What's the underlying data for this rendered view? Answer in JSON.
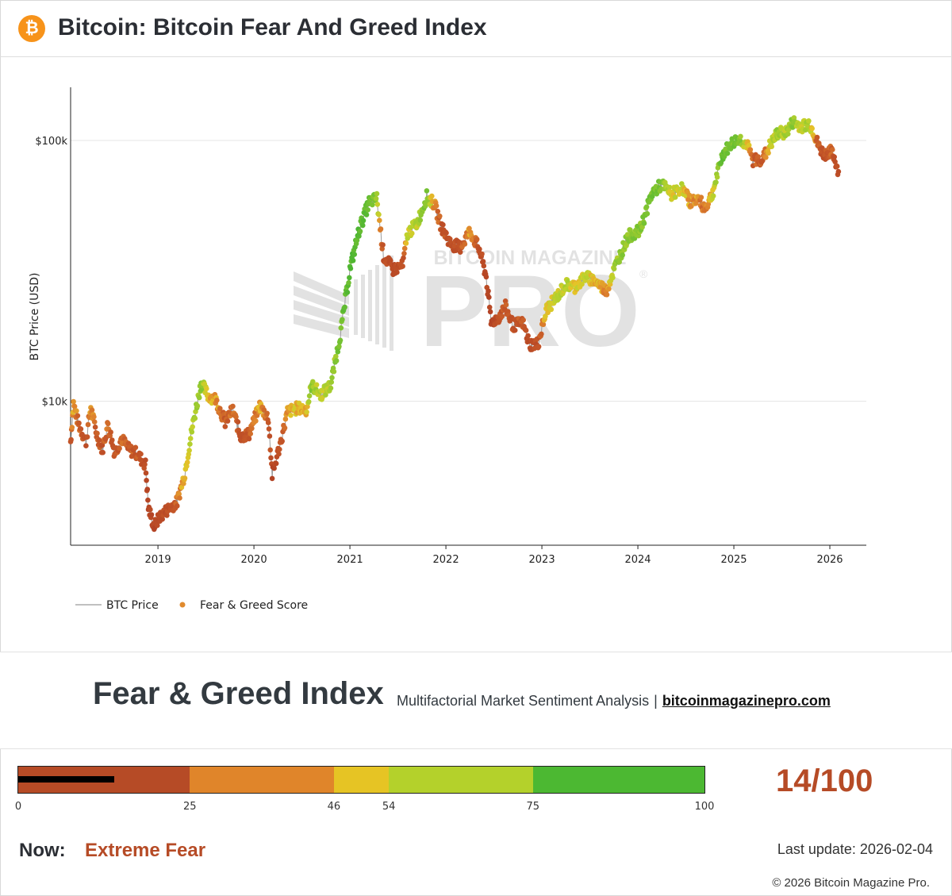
{
  "header": {
    "title": "Bitcoin: Bitcoin Fear And Greed Index",
    "logo_icon": "bitcoin-icon",
    "logo_glyph": "₿"
  },
  "chart_data": {
    "type": "scatter",
    "title": "Bitcoin: Bitcoin Fear And Greed Index",
    "ylabel": "BTC Price (USD)",
    "xlabel": "",
    "yscale": "log",
    "ylim": [
      2800,
      160000
    ],
    "xlim": [
      2018.09,
      2026.38
    ],
    "x_ticks": [
      {
        "label": "2019",
        "value": 2019
      },
      {
        "label": "2020",
        "value": 2020
      },
      {
        "label": "2021",
        "value": 2021
      },
      {
        "label": "2022",
        "value": 2022
      },
      {
        "label": "2023",
        "value": 2023
      },
      {
        "label": "2024",
        "value": 2024
      },
      {
        "label": "2025",
        "value": 2025
      },
      {
        "label": "2026",
        "value": 2026
      }
    ],
    "y_ticks": [
      {
        "label": "$10k",
        "value": 10000
      },
      {
        "label": "$100k",
        "value": 100000
      }
    ],
    "legend": {
      "position": "bottom-left",
      "items": [
        "BTC Price",
        "Fear & Greed Score"
      ]
    },
    "series": [
      {
        "name": "BTC Price",
        "color": "#9a9a9a",
        "points": [
          [
            2018.09,
            7000,
            22
          ],
          [
            2018.12,
            9800,
            48
          ],
          [
            2018.17,
            8200,
            30
          ],
          [
            2018.25,
            7000,
            18
          ],
          [
            2018.3,
            9500,
            44
          ],
          [
            2018.36,
            7500,
            26
          ],
          [
            2018.42,
            6500,
            20
          ],
          [
            2018.48,
            8200,
            38
          ],
          [
            2018.55,
            6300,
            20
          ],
          [
            2018.62,
            7200,
            30
          ],
          [
            2018.7,
            6500,
            24
          ],
          [
            2018.78,
            6300,
            26
          ],
          [
            2018.87,
            5700,
            18
          ],
          [
            2018.9,
            3900,
            8
          ],
          [
            2018.96,
            3300,
            6
          ],
          [
            2019.02,
            3600,
            14
          ],
          [
            2019.12,
            3900,
            18
          ],
          [
            2019.2,
            4100,
            32
          ],
          [
            2019.28,
            5300,
            50
          ],
          [
            2019.36,
            8000,
            62
          ],
          [
            2019.45,
            11800,
            72
          ],
          [
            2019.52,
            10500,
            48
          ],
          [
            2019.6,
            10200,
            44
          ],
          [
            2019.7,
            8300,
            26
          ],
          [
            2019.78,
            9300,
            34
          ],
          [
            2019.86,
            7300,
            22
          ],
          [
            2019.95,
            7500,
            26
          ],
          [
            2020.06,
            9600,
            46
          ],
          [
            2020.15,
            8600,
            30
          ],
          [
            2020.19,
            5200,
            8
          ],
          [
            2020.28,
            7000,
            20
          ],
          [
            2020.35,
            9100,
            46
          ],
          [
            2020.45,
            9400,
            50
          ],
          [
            2020.55,
            9300,
            48
          ],
          [
            2020.6,
            11500,
            70
          ],
          [
            2020.7,
            10600,
            58
          ],
          [
            2020.8,
            11500,
            62
          ],
          [
            2020.9,
            18000,
            80
          ],
          [
            2021.0,
            32000,
            88
          ],
          [
            2021.1,
            46000,
            90
          ],
          [
            2021.2,
            58000,
            82
          ],
          [
            2021.28,
            60000,
            70
          ],
          [
            2021.35,
            36000,
            18
          ],
          [
            2021.45,
            32000,
            14
          ],
          [
            2021.55,
            33000,
            20
          ],
          [
            2021.6,
            44000,
            58
          ],
          [
            2021.7,
            48000,
            60
          ],
          [
            2021.8,
            61000,
            78
          ],
          [
            2021.88,
            57000,
            40
          ],
          [
            2021.95,
            47000,
            24
          ],
          [
            2022.05,
            40000,
            18
          ],
          [
            2022.15,
            39000,
            22
          ],
          [
            2022.25,
            45000,
            44
          ],
          [
            2022.35,
            38000,
            20
          ],
          [
            2022.42,
            30000,
            10
          ],
          [
            2022.47,
            20000,
            6
          ],
          [
            2022.55,
            21000,
            18
          ],
          [
            2022.62,
            23000,
            30
          ],
          [
            2022.7,
            19500,
            22
          ],
          [
            2022.8,
            20000,
            24
          ],
          [
            2022.87,
            16500,
            14
          ],
          [
            2022.96,
            16600,
            20
          ],
          [
            2023.05,
            22500,
            54
          ],
          [
            2023.15,
            25000,
            56
          ],
          [
            2023.25,
            28000,
            60
          ],
          [
            2023.35,
            27500,
            52
          ],
          [
            2023.45,
            30000,
            58
          ],
          [
            2023.55,
            29000,
            50
          ],
          [
            2023.67,
            26500,
            40
          ],
          [
            2023.78,
            34000,
            70
          ],
          [
            2023.9,
            43000,
            72
          ],
          [
            2024.02,
            45000,
            74
          ],
          [
            2024.15,
            63000,
            80
          ],
          [
            2024.25,
            68000,
            74
          ],
          [
            2024.35,
            62000,
            54
          ],
          [
            2024.45,
            66000,
            58
          ],
          [
            2024.55,
            58000,
            40
          ],
          [
            2024.62,
            60000,
            42
          ],
          [
            2024.7,
            55000,
            32
          ],
          [
            2024.78,
            63000,
            54
          ],
          [
            2024.88,
            88000,
            82
          ],
          [
            2024.96,
            96000,
            78
          ],
          [
            2025.05,
            102000,
            76
          ],
          [
            2025.13,
            97000,
            56
          ],
          [
            2025.2,
            84000,
            28
          ],
          [
            2025.3,
            85000,
            24
          ],
          [
            2025.38,
            96000,
            58
          ],
          [
            2025.45,
            106000,
            66
          ],
          [
            2025.55,
            108000,
            62
          ],
          [
            2025.62,
            118000,
            70
          ],
          [
            2025.7,
            113000,
            58
          ],
          [
            2025.78,
            116000,
            64
          ],
          [
            2025.83,
            108000,
            44
          ],
          [
            2025.88,
            95000,
            24
          ],
          [
            2025.94,
            88000,
            20
          ],
          [
            2026.0,
            91000,
            30
          ],
          [
            2026.04,
            87000,
            22
          ],
          [
            2026.09,
            76000,
            14
          ]
        ]
      },
      {
        "name": "Fear & Greed Score",
        "color": "#e08a2e"
      }
    ]
  },
  "watermark": {
    "top": "BITCOIN MAGAZINE",
    "big": "PRO",
    "mark": "®"
  },
  "index_band": {
    "title": "Fear & Greed Index",
    "subtitle": "Multifactorial Market Sentiment Analysis",
    "separator": "|",
    "link": "bitcoinmagazinepro.com"
  },
  "gauge": {
    "value": 14,
    "score_text": "14/100",
    "ticks": [
      "0",
      "25",
      "46",
      "54",
      "75",
      "100"
    ],
    "segments": [
      {
        "from": 0,
        "to": 25,
        "color": "#b64b26"
      },
      {
        "from": 25,
        "to": 46,
        "color": "#e0852a"
      },
      {
        "from": 46,
        "to": 54,
        "color": "#e6c424"
      },
      {
        "from": 54,
        "to": 75,
        "color": "#b4d12b"
      },
      {
        "from": 75,
        "to": 100,
        "color": "#4cb832"
      }
    ]
  },
  "status": {
    "now_label": "Now:",
    "now_value": "Extreme Fear",
    "last_update": "Last update: 2026-02-04",
    "copyright": "© 2026 Bitcoin Magazine Pro."
  }
}
